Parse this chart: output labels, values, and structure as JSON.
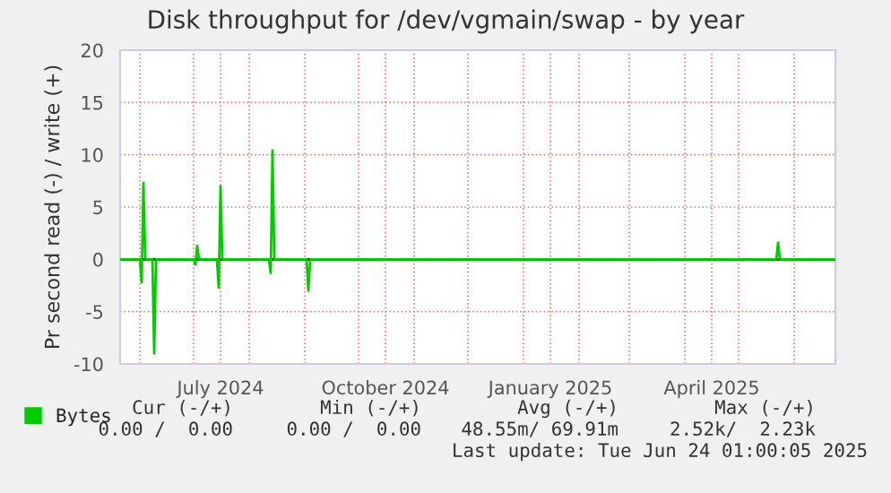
{
  "chart_data": {
    "type": "line",
    "title": "Disk throughput for /dev/vgmain/swap - by year",
    "ylabel": "Pr second read (-) / write (+)",
    "series": [
      {
        "name": "Bytes",
        "color": "#00cc00",
        "x": [
          "2024-05-21",
          "2024-06-01",
          "2024-06-02",
          "2024-06-03",
          "2024-06-04",
          "2024-06-08",
          "2024-06-09",
          "2024-06-10",
          "2024-07-01",
          "2024-07-02",
          "2024-07-03",
          "2024-07-04",
          "2024-07-14",
          "2024-07-15",
          "2024-07-16",
          "2024-07-17",
          "2024-08-12",
          "2024-08-13",
          "2024-08-14",
          "2024-08-15",
          "2024-09-02",
          "2024-09-03",
          "2024-09-04",
          "2025-05-22",
          "2025-05-23",
          "2025-05-24",
          "2025-06-24"
        ],
        "values": [
          0,
          0,
          -2.2,
          7.3,
          0,
          0,
          -9,
          0,
          0,
          -0.5,
          1.3,
          0,
          0,
          -2.7,
          7,
          0,
          0,
          -1.3,
          10.4,
          0,
          0,
          -3,
          0,
          0,
          1.6,
          0,
          0
        ]
      }
    ],
    "xlim": [
      "2024-05-21",
      "2025-06-24"
    ],
    "xticks": [
      {
        "value": "2024-06-01",
        "label": null
      },
      {
        "value": "2024-07-01",
        "label": null
      },
      {
        "value": "2024-07-16",
        "label": "July 2024"
      },
      {
        "value": "2024-08-01",
        "label": null
      },
      {
        "value": "2024-09-01",
        "label": null
      },
      {
        "value": "2024-10-01",
        "label": null
      },
      {
        "value": "2024-10-16",
        "label": "October 2024"
      },
      {
        "value": "2024-11-01",
        "label": null
      },
      {
        "value": "2024-12-01",
        "label": null
      },
      {
        "value": "2025-01-01",
        "label": null
      },
      {
        "value": "2025-01-16",
        "label": "January 2025"
      },
      {
        "value": "2025-02-01",
        "label": null
      },
      {
        "value": "2025-03-01",
        "label": null
      },
      {
        "value": "2025-04-01",
        "label": null
      },
      {
        "value": "2025-04-16",
        "label": "April 2025"
      },
      {
        "value": "2025-05-01",
        "label": null
      },
      {
        "value": "2025-06-01",
        "label": null
      }
    ],
    "ylim": [
      -10,
      20
    ],
    "yticks": [
      -10,
      -5,
      0,
      5,
      10,
      15,
      20
    ],
    "grid": true,
    "legend": "bottom left",
    "ref_lines": [
      {
        "axis": "y",
        "value": 0,
        "color": "#000000"
      }
    ],
    "annotations": [
      "Cur (-/+)",
      "Min (-/+)",
      "Avg (-/+)",
      "Max (-/+)",
      "0.00 /  0.00",
      "0.00 /  0.00",
      "48.55m/ 69.91m",
      "2.52k/  2.23k",
      "Last update: Tue Jun 24 01:00:05 2025"
    ]
  }
}
